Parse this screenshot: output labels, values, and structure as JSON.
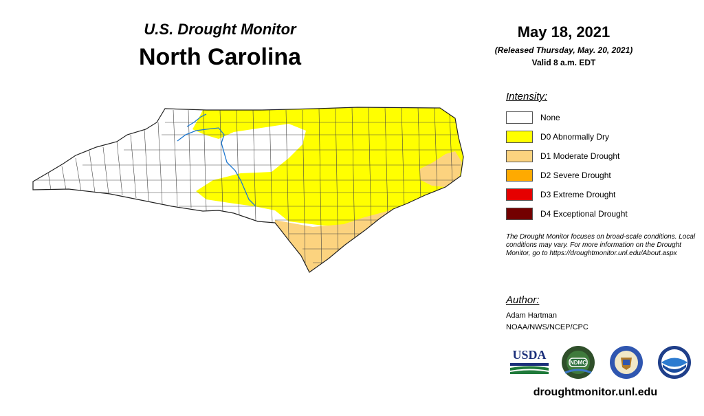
{
  "header": {
    "subtitle": "U.S. Drought Monitor",
    "title": "North Carolina",
    "date": "May 18, 2021",
    "released": "(Released Thursday, May. 20, 2021)",
    "valid": "Valid 8 a.m. EDT"
  },
  "legend": {
    "title": "Intensity:",
    "items": [
      {
        "label": "None",
        "color": "#ffffff"
      },
      {
        "label": "D0 Abnormally Dry",
        "color": "#ffff00"
      },
      {
        "label": "D1 Moderate Drought",
        "color": "#fcd37f"
      },
      {
        "label": "D2 Severe Drought",
        "color": "#ffaa00"
      },
      {
        "label": "D3 Extreme Drought",
        "color": "#e60000"
      },
      {
        "label": "D4 Exceptional Drought",
        "color": "#730000"
      }
    ]
  },
  "disclaimer": "The Drought Monitor focuses on broad-scale conditions. Local conditions may vary. For more information on the Drought Monitor, go to https://droughtmonitor.unl.edu/About.aspx",
  "author": {
    "title": "Author:",
    "name": "Adam Hartman",
    "org": "NOAA/NWS/NCEP/CPC"
  },
  "logos": {
    "usda": "USDA",
    "ndmc": "NDMC",
    "icons": [
      "usda-logo-icon",
      "ndmc-logo-icon",
      "commerce-seal-icon",
      "noaa-logo-icon"
    ]
  },
  "website": "droughtmonitor.unl.edu"
}
